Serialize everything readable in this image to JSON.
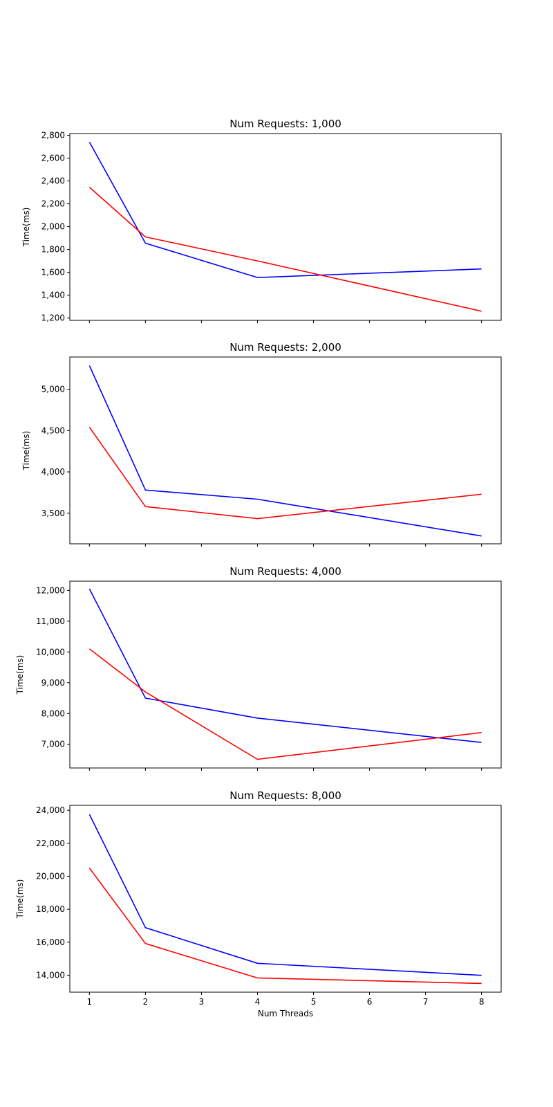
{
  "chart_data": [
    {
      "type": "line",
      "title": "Num Requests: 1,000",
      "ylabel": "Time(ms)",
      "xlabel": "",
      "x": [
        1,
        2,
        4,
        8
      ],
      "xlim": [
        0.65,
        8.35
      ],
      "ylim": [
        1180,
        2815
      ],
      "xticks": [
        1,
        2,
        3,
        4,
        5,
        6,
        7,
        8
      ],
      "show_xtick_labels": false,
      "yticks": [
        1200,
        1400,
        1600,
        1800,
        2000,
        2200,
        2400,
        2600,
        2800
      ],
      "ytick_labels": [
        "1,200",
        "1,400",
        "1,600",
        "1,800",
        "2,000",
        "2,200",
        "2,400",
        "2,600",
        "2,800"
      ],
      "series": [
        {
          "color": "#0000ff",
          "values": [
            2740,
            1855,
            1555,
            1630
          ]
        },
        {
          "color": "#ff0000",
          "values": [
            2345,
            1910,
            1700,
            1260
          ]
        }
      ],
      "grid": false
    },
    {
      "type": "line",
      "title": "Num Requests: 2,000",
      "ylabel": "Time(ms)",
      "xlabel": "",
      "x": [
        1,
        2,
        4,
        8
      ],
      "xlim": [
        0.65,
        8.35
      ],
      "ylim": [
        3130,
        5390
      ],
      "xticks": [
        1,
        2,
        3,
        4,
        5,
        6,
        7,
        8
      ],
      "show_xtick_labels": false,
      "yticks": [
        3500,
        4000,
        4500,
        5000
      ],
      "ytick_labels": [
        "3,500",
        "4,000",
        "4,500",
        "5,000"
      ],
      "series": [
        {
          "color": "#0000ff",
          "values": [
            5285,
            3780,
            3670,
            3225
          ]
        },
        {
          "color": "#ff0000",
          "values": [
            4540,
            3580,
            3435,
            3730
          ]
        }
      ],
      "grid": false
    },
    {
      "type": "line",
      "title": "Num Requests: 4,000",
      "ylabel": "Time(ms)",
      "xlabel": "",
      "x": [
        1,
        2,
        4,
        8
      ],
      "xlim": [
        0.65,
        8.35
      ],
      "ylim": [
        6230,
        12300
      ],
      "xticks": [
        1,
        2,
        3,
        4,
        5,
        6,
        7,
        8
      ],
      "show_xtick_labels": false,
      "yticks": [
        7000,
        8000,
        9000,
        10000,
        11000,
        12000
      ],
      "ytick_labels": [
        "7,000",
        "8,000",
        "9,000",
        "10,000",
        "11,000",
        "12,000"
      ],
      "series": [
        {
          "color": "#0000ff",
          "values": [
            12050,
            8500,
            7850,
            7060
          ]
        },
        {
          "color": "#ff0000",
          "values": [
            10100,
            8700,
            6510,
            7380
          ]
        }
      ],
      "grid": false
    },
    {
      "type": "line",
      "title": "Num Requests: 8,000",
      "ylabel": "Time(ms)",
      "xlabel": "Num Threads",
      "x": [
        1,
        2,
        4,
        8
      ],
      "xlim": [
        0.65,
        8.35
      ],
      "ylim": [
        12970,
        24300
      ],
      "xticks": [
        1,
        2,
        3,
        4,
        5,
        6,
        7,
        8
      ],
      "xtick_labels": [
        "1",
        "2",
        "3",
        "4",
        "5",
        "6",
        "7",
        "8"
      ],
      "show_xtick_labels": true,
      "yticks": [
        14000,
        16000,
        18000,
        20000,
        22000,
        24000
      ],
      "ytick_labels": [
        "14,000",
        "16,000",
        "18,000",
        "20,000",
        "22,000",
        "24,000"
      ],
      "series": [
        {
          "color": "#0000ff",
          "values": [
            23750,
            16880,
            14720,
            13990
          ]
        },
        {
          "color": "#ff0000",
          "values": [
            20500,
            15920,
            13830,
            13500
          ]
        }
      ],
      "grid": false
    }
  ]
}
